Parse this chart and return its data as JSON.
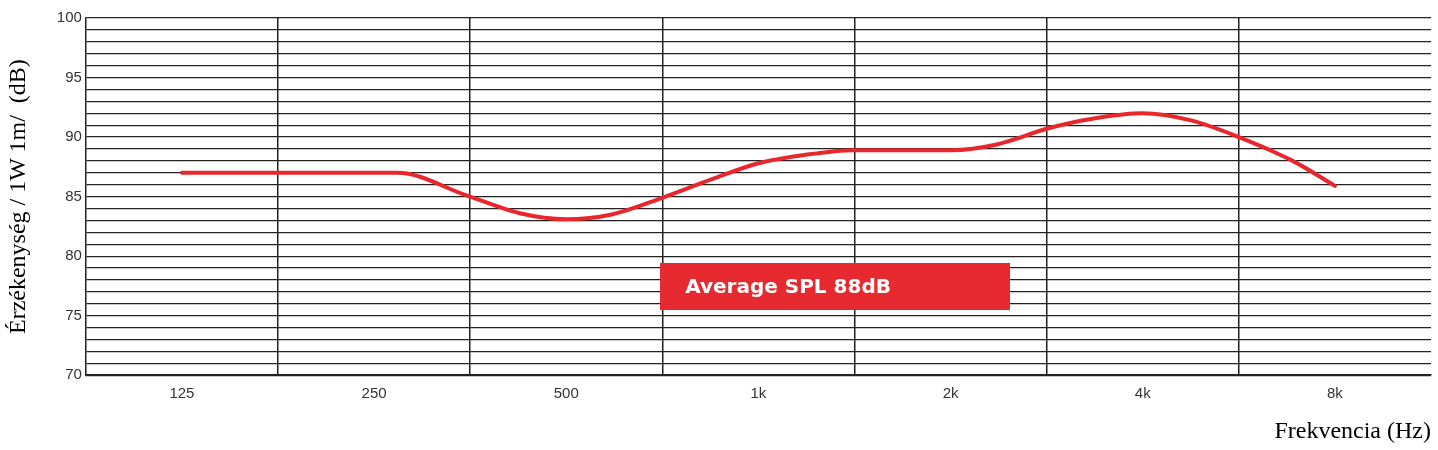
{
  "chart_data": {
    "type": "line",
    "xlabel": "Frekvencia (Hz)",
    "ylabel": "Érzékenység / 1W 1m/  (dB)",
    "x": [
      125,
      176,
      272,
      349,
      423,
      500,
      589,
      707,
      850,
      1000,
      1180,
      1414,
      2000,
      2372,
      2828,
      3300,
      4000,
      4760,
      5657,
      6870,
      8000
    ],
    "series": [
      {
        "color": "#e8262b",
        "values": [
          87,
          87,
          87,
          85.1,
          83.6,
          83.1,
          83.5,
          84.9,
          86.5,
          87.8,
          88.5,
          88.9,
          88.9,
          89.4,
          90.7,
          91.5,
          92,
          91.4,
          90,
          88,
          85.9
        ]
      }
    ],
    "log": "x",
    "xlim": [
      88.39,
      11314
    ],
    "xticks": [
      {
        "value": 125,
        "label": "125"
      },
      {
        "value": 176.8,
        "label": null
      },
      {
        "value": 250,
        "label": "250"
      },
      {
        "value": 353.6,
        "label": null
      },
      {
        "value": 500,
        "label": "500"
      },
      {
        "value": 707.1,
        "label": null
      },
      {
        "value": 1000,
        "label": "1k"
      },
      {
        "value": 1414,
        "label": null
      },
      {
        "value": 2000,
        "label": "2k"
      },
      {
        "value": 2828,
        "label": null
      },
      {
        "value": 4000,
        "label": "4k"
      },
      {
        "value": 5657,
        "label": null
      },
      {
        "value": 8000,
        "label": "8k"
      }
    ],
    "ylim": [
      70,
      100
    ],
    "yticks": [
      70,
      {
        "value": 71,
        "label": null
      },
      {
        "value": 72,
        "label": null
      },
      {
        "value": 73,
        "label": null
      },
      {
        "value": 74,
        "label": null
      },
      75,
      {
        "value": 76,
        "label": null
      },
      {
        "value": 77,
        "label": null
      },
      {
        "value": 78,
        "label": null
      },
      {
        "value": 79,
        "label": null
      },
      80,
      {
        "value": 81,
        "label": null
      },
      {
        "value": 82,
        "label": null
      },
      {
        "value": 83,
        "label": null
      },
      {
        "value": 84,
        "label": null
      },
      85,
      {
        "value": 86,
        "label": null
      },
      {
        "value": 87,
        "label": null
      },
      {
        "value": 88,
        "label": null
      },
      {
        "value": 89,
        "label": null
      },
      90,
      {
        "value": 91,
        "label": null
      },
      {
        "value": 92,
        "label": null
      },
      {
        "value": 93,
        "label": null
      },
      {
        "value": 94,
        "label": null
      },
      95,
      {
        "value": 96,
        "label": null
      },
      {
        "value": 97,
        "label": null
      },
      {
        "value": 98,
        "label": null
      },
      {
        "value": 99,
        "label": null
      },
      100
    ],
    "grid": true,
    "legend": false,
    "marker": "none",
    "line_style": "solid",
    "annotations": [
      "Average SPL 88dB"
    ]
  }
}
